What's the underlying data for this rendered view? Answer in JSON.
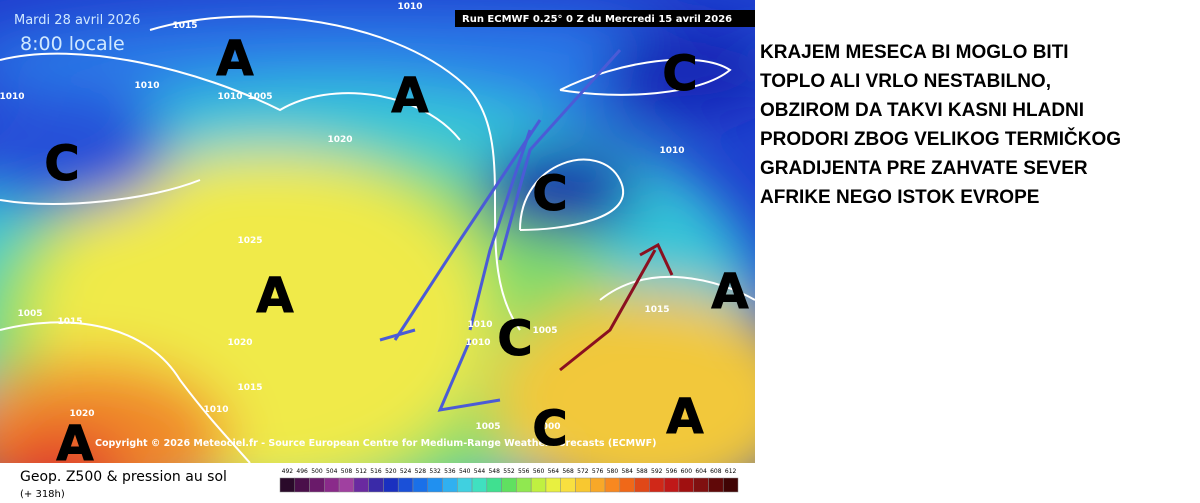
{
  "map": {
    "date": "Mardi 28 avril 2026",
    "time": "8:00 locale",
    "run": "Run ECMWF 0.25° 0 Z du Mercredi 15 avril 2026",
    "copyright": "Copyright © 2026 Meteociel.fr - Source European Centre for Medium-Range Weather Forecasts (ECMWF)",
    "pressure_labels": [
      "1015",
      "1010",
      "1010",
      "1010",
      "1010",
      "1005",
      "1020",
      "1025",
      "1010",
      "1005",
      "1015",
      "1020",
      "1015",
      "1010",
      "1020",
      "1010",
      "1010",
      "1005",
      "1015",
      "1000",
      "1005"
    ],
    "centers": [
      "A",
      "A",
      "C",
      "C",
      "C",
      "A",
      "A",
      "C",
      "A",
      "A",
      "C"
    ]
  },
  "legend": {
    "title": "Geop. Z500 & pression au sol",
    "lead": "(+ 318h)",
    "scale": [
      492,
      496,
      500,
      504,
      508,
      512,
      516,
      520,
      524,
      528,
      532,
      536,
      540,
      544,
      548,
      552,
      556,
      560,
      564,
      568,
      572,
      576,
      580,
      584,
      588,
      592,
      596,
      600,
      604,
      608,
      612
    ]
  },
  "note": {
    "lines": [
      "KRAJEM MESECA BI MOGLO BITI",
      "TOPLO ALI VRLO NESTABILNO,",
      "OBZIROM DA TAKVI KASNI HLADNI",
      "PRODORI ZBOG VELIKOG TERMIČKOG",
      "GRADIJENTA PRE ZAHVATE SEVER",
      "AFRIKE NEGO ISTOK EVROPE"
    ]
  }
}
